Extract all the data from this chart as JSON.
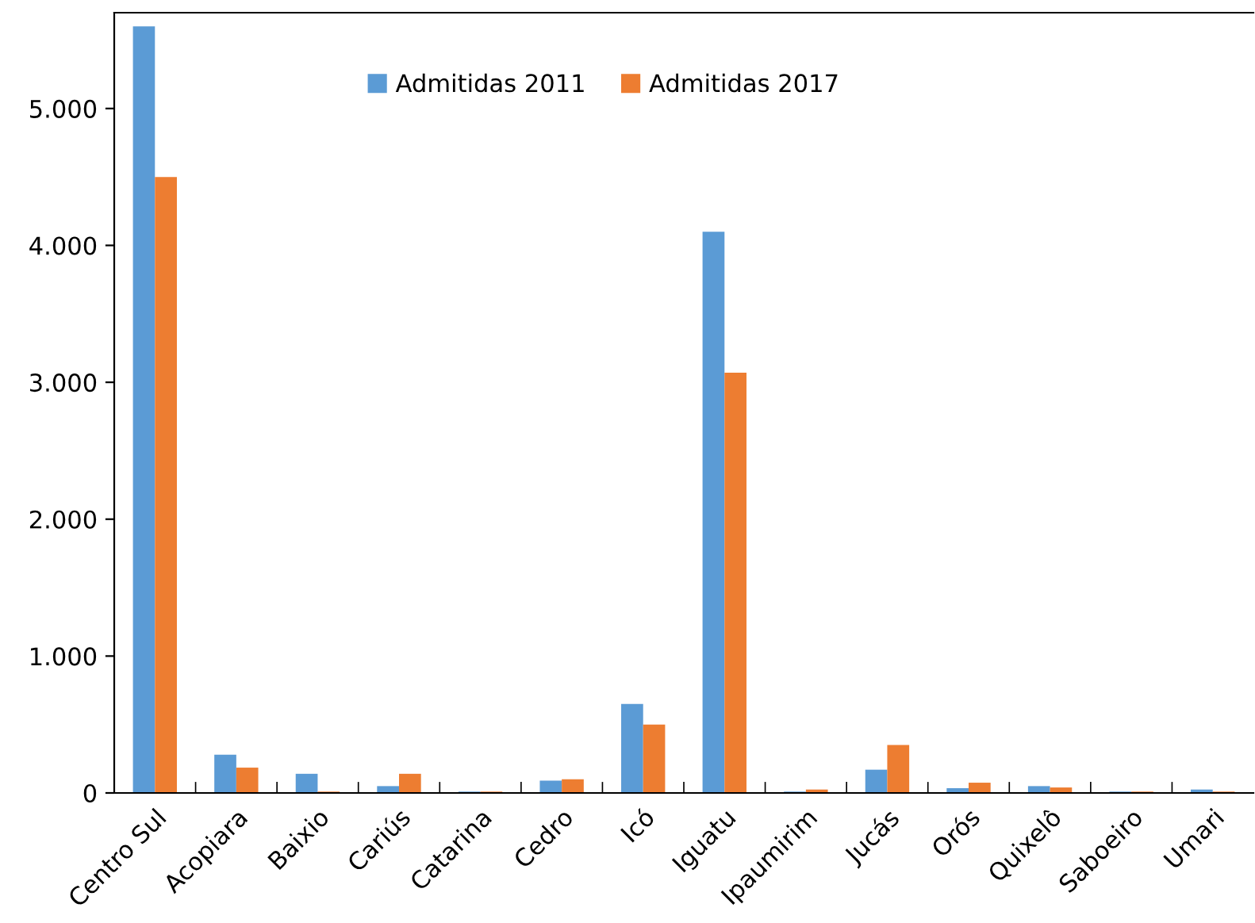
{
  "chart_data": {
    "type": "bar",
    "categories": [
      "Centro Sul",
      "Acopiara",
      "Baixio",
      "Cariús",
      "Catarina",
      "Cedro",
      "Icó",
      "Iguatu",
      "Ipaumirim",
      "Jucás",
      "Orós",
      "Quixelô",
      "Saboeiro",
      "Umari"
    ],
    "series": [
      {
        "name": "Admitidas 2011",
        "color": "#5b9bd5",
        "values": [
          5600,
          280,
          140,
          50,
          10,
          90,
          650,
          4100,
          10,
          170,
          35,
          50,
          10,
          25
        ]
      },
      {
        "name": "Admitidas 2017",
        "color": "#ed7d31",
        "values": [
          4500,
          185,
          10,
          140,
          10,
          100,
          500,
          3070,
          25,
          350,
          75,
          40,
          10,
          10
        ]
      }
    ],
    "ylim": [
      0,
      5700
    ],
    "yticks": [
      {
        "value": 0,
        "label": "0"
      },
      {
        "value": 1000,
        "label": "1.000"
      },
      {
        "value": 2000,
        "label": "2.000"
      },
      {
        "value": 3000,
        "label": "3.000"
      },
      {
        "value": 4000,
        "label": "4.000"
      },
      {
        "value": 5000,
        "label": "5.000"
      }
    ],
    "grid": false,
    "legend": "top"
  }
}
